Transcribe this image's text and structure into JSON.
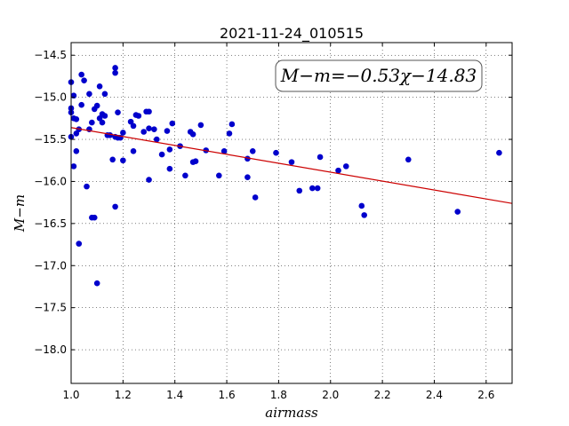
{
  "chart_data": {
    "type": "scatter",
    "title": "2021-11-24_010515",
    "xlabel": "airmass",
    "ylabel": "M−m",
    "xlim": [
      1.0,
      2.7
    ],
    "ylim": [
      -18.4,
      -14.35
    ],
    "y_inverted": true,
    "grid": true,
    "x_ticks": [
      1.0,
      1.2,
      1.4,
      1.6,
      1.8,
      2.0,
      2.2,
      2.4,
      2.6
    ],
    "x_tick_labels": [
      "1.0",
      "1.2",
      "1.4",
      "1.6",
      "1.8",
      "2.0",
      "2.2",
      "2.4",
      "2.6"
    ],
    "y_ticks": [
      -14.5,
      -15.0,
      -15.5,
      -16.0,
      -16.5,
      -17.0,
      -17.5,
      -18.0
    ],
    "y_tick_labels": [
      "−14.5",
      "−15.0",
      "−15.5",
      "−16.0",
      "−16.5",
      "−17.0",
      "−17.5",
      "−18.0"
    ],
    "annotation": "M−m=−0.53χ−14.83",
    "fit": {
      "slope": -0.53,
      "intercept": -14.83,
      "color": "#cc0000"
    },
    "marker_color": "#0000cc",
    "points": [
      [
        1.0,
        -14.82
      ],
      [
        1.0,
        -15.13
      ],
      [
        1.0,
        -15.18
      ],
      [
        1.01,
        -14.98
      ],
      [
        1.01,
        -15.25
      ],
      [
        1.0,
        -15.47
      ],
      [
        1.01,
        -15.82
      ],
      [
        1.02,
        -15.26
      ],
      [
        1.02,
        -15.43
      ],
      [
        1.02,
        -15.64
      ],
      [
        1.03,
        -15.38
      ],
      [
        1.04,
        -14.73
      ],
      [
        1.05,
        -14.8
      ],
      [
        1.04,
        -15.09
      ],
      [
        1.03,
        -16.74
      ],
      [
        1.06,
        -16.06
      ],
      [
        1.07,
        -14.96
      ],
      [
        1.07,
        -15.38
      ],
      [
        1.08,
        -15.3
      ],
      [
        1.08,
        -16.43
      ],
      [
        1.09,
        -16.43
      ],
      [
        1.09,
        -15.14
      ],
      [
        1.1,
        -15.1
      ],
      [
        1.11,
        -14.87
      ],
      [
        1.11,
        -15.25
      ],
      [
        1.12,
        -15.2
      ],
      [
        1.12,
        -15.3
      ],
      [
        1.13,
        -15.22
      ],
      [
        1.13,
        -14.96
      ],
      [
        1.14,
        -15.45
      ],
      [
        1.1,
        -17.21
      ],
      [
        1.15,
        -15.45
      ],
      [
        1.16,
        -15.74
      ],
      [
        1.17,
        -15.47
      ],
      [
        1.17,
        -14.65
      ],
      [
        1.17,
        -14.71
      ],
      [
        1.17,
        -16.3
      ],
      [
        1.18,
        -15.48
      ],
      [
        1.18,
        -15.18
      ],
      [
        1.19,
        -15.48
      ],
      [
        1.2,
        -15.42
      ],
      [
        1.2,
        -15.75
      ],
      [
        1.23,
        -15.29
      ],
      [
        1.24,
        -15.64
      ],
      [
        1.24,
        -15.34
      ],
      [
        1.25,
        -15.21
      ],
      [
        1.26,
        -15.22
      ],
      [
        1.28,
        -15.41
      ],
      [
        1.29,
        -15.17
      ],
      [
        1.3,
        -15.37
      ],
      [
        1.3,
        -15.17
      ],
      [
        1.3,
        -15.98
      ],
      [
        1.32,
        -15.38
      ],
      [
        1.33,
        -15.5
      ],
      [
        1.35,
        -15.68
      ],
      [
        1.37,
        -15.4
      ],
      [
        1.38,
        -15.62
      ],
      [
        1.38,
        -15.85
      ],
      [
        1.39,
        -15.31
      ],
      [
        1.42,
        -15.58
      ],
      [
        1.44,
        -15.93
      ],
      [
        1.46,
        -15.41
      ],
      [
        1.47,
        -15.44
      ],
      [
        1.47,
        -15.77
      ],
      [
        1.48,
        -15.76
      ],
      [
        1.5,
        -15.33
      ],
      [
        1.52,
        -15.63
      ],
      [
        1.57,
        -15.93
      ],
      [
        1.59,
        -15.64
      ],
      [
        1.61,
        -15.43
      ],
      [
        1.62,
        -15.32
      ],
      [
        1.68,
        -15.73
      ],
      [
        1.68,
        -15.95
      ],
      [
        1.7,
        -15.64
      ],
      [
        1.71,
        -16.19
      ],
      [
        1.79,
        -15.66
      ],
      [
        1.85,
        -15.77
      ],
      [
        1.88,
        -16.11
      ],
      [
        1.93,
        -16.08
      ],
      [
        1.95,
        -16.08
      ],
      [
        1.96,
        -15.71
      ],
      [
        2.03,
        -15.87
      ],
      [
        2.06,
        -15.82
      ],
      [
        2.12,
        -16.29
      ],
      [
        2.13,
        -16.4
      ],
      [
        2.3,
        -15.74
      ],
      [
        2.49,
        -16.36
      ],
      [
        2.65,
        -15.66
      ]
    ]
  }
}
